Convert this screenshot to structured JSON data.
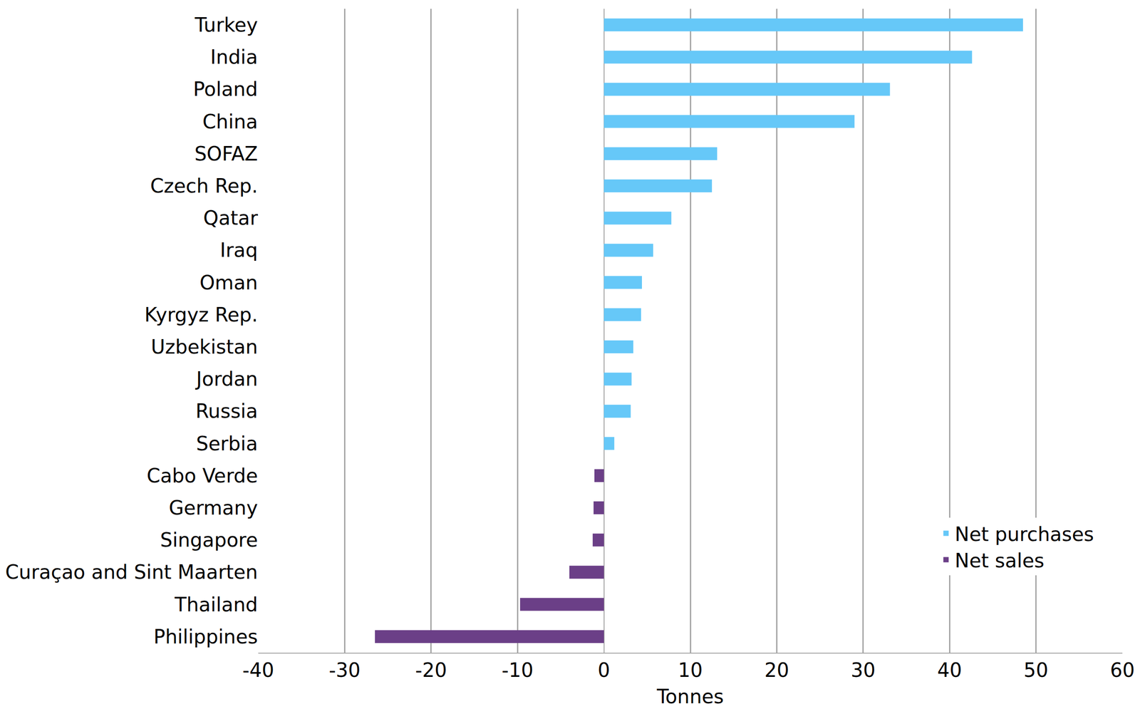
{
  "chart_data": {
    "type": "bar",
    "orientation": "horizontal",
    "x_label": "Tonnes",
    "categories": [
      "Turkey",
      "India",
      "Poland",
      "China",
      "SOFAZ",
      "Czech Rep.",
      "Qatar",
      "Iraq",
      "Oman",
      "Kyrgyz Rep.",
      "Uzbekistan",
      "Jordan",
      "Russia",
      "Serbia",
      "Cabo Verde",
      "Germany",
      "Singapore",
      "Curaçao and Sint Maarten",
      "Thailand",
      "Philippines"
    ],
    "series": [
      {
        "name": "Net purchases",
        "color": "#66c8f8",
        "values": [
          48.5,
          42.6,
          33.1,
          29.0,
          13.1,
          12.5,
          7.8,
          5.7,
          4.4,
          4.3,
          3.4,
          3.2,
          3.1,
          1.2,
          null,
          null,
          null,
          null,
          null,
          null
        ]
      },
      {
        "name": "Net sales",
        "color": "#6b3f87",
        "values": [
          null,
          null,
          null,
          null,
          null,
          null,
          null,
          null,
          null,
          null,
          null,
          null,
          null,
          null,
          -1.1,
          -1.2,
          -1.3,
          -4.0,
          -9.7,
          -26.5
        ]
      }
    ],
    "xlim": [
      -40,
      60
    ],
    "xticks": [
      -40,
      -30,
      -20,
      -10,
      0,
      10,
      20,
      30,
      40,
      50,
      60
    ],
    "grid": true,
    "legend": "lower right"
  }
}
